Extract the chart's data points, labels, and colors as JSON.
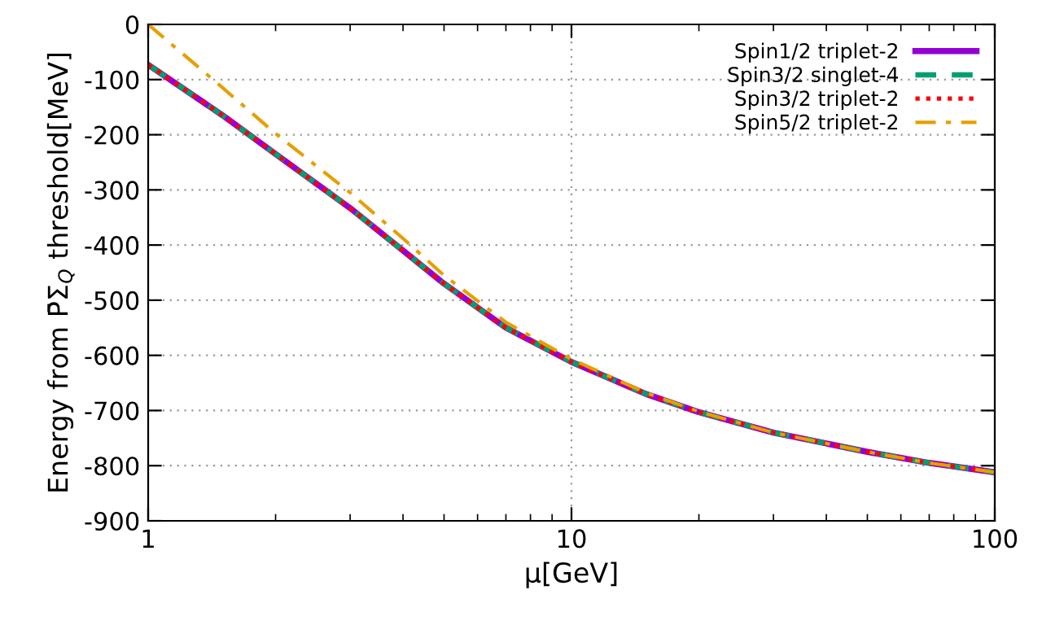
{
  "chart_data": {
    "type": "line",
    "xlabel": "μ[GeV]",
    "ylabel": "Energy from P̄Σ$_{Q}$ threshold[MeV]",
    "x": [
      1,
      1.5,
      2,
      3,
      4,
      5,
      7,
      10,
      15,
      20,
      30,
      50,
      70,
      100
    ],
    "series": [
      {
        "name": "Spin1/2 triplet-2",
        "color": "#9400d3",
        "line_style": "solid",
        "values": [
          -73,
          -165,
          -235,
          -333,
          -410,
          -470,
          -550,
          -612,
          -670,
          -703,
          -740,
          -775,
          -795,
          -812
        ]
      },
      {
        "name": "Spin3/2 singlet-4",
        "color": "#009e73",
        "line_style": "dashed",
        "values": [
          -73,
          -165,
          -235,
          -333,
          -410,
          -470,
          -550,
          -612,
          -670,
          -703,
          -740,
          -775,
          -795,
          -812
        ]
      },
      {
        "name": "Spin3/2 triplet-2",
        "color": "#ff0000",
        "line_style": "dotted",
        "values": [
          -73,
          -165,
          -235,
          -333,
          -410,
          -470,
          -550,
          -612,
          -670,
          -703,
          -740,
          -775,
          -795,
          -812
        ]
      },
      {
        "name": "Spin5/2 triplet-2",
        "color": "#e69f00",
        "line_style": "dashdot",
        "values": [
          0,
          -115,
          -198,
          -305,
          -388,
          -455,
          -540,
          -607,
          -668,
          -702,
          -740,
          -775,
          -795,
          -812
        ]
      }
    ],
    "log": "x",
    "xlim": [
      1,
      100
    ],
    "xticks": [
      1,
      10,
      100
    ],
    "ylim": [
      -900,
      0
    ],
    "yticks": [
      -900,
      -800,
      -700,
      -600,
      -500,
      -400,
      -300,
      -200,
      -100,
      0
    ],
    "grid": true,
    "legend": "top right"
  }
}
